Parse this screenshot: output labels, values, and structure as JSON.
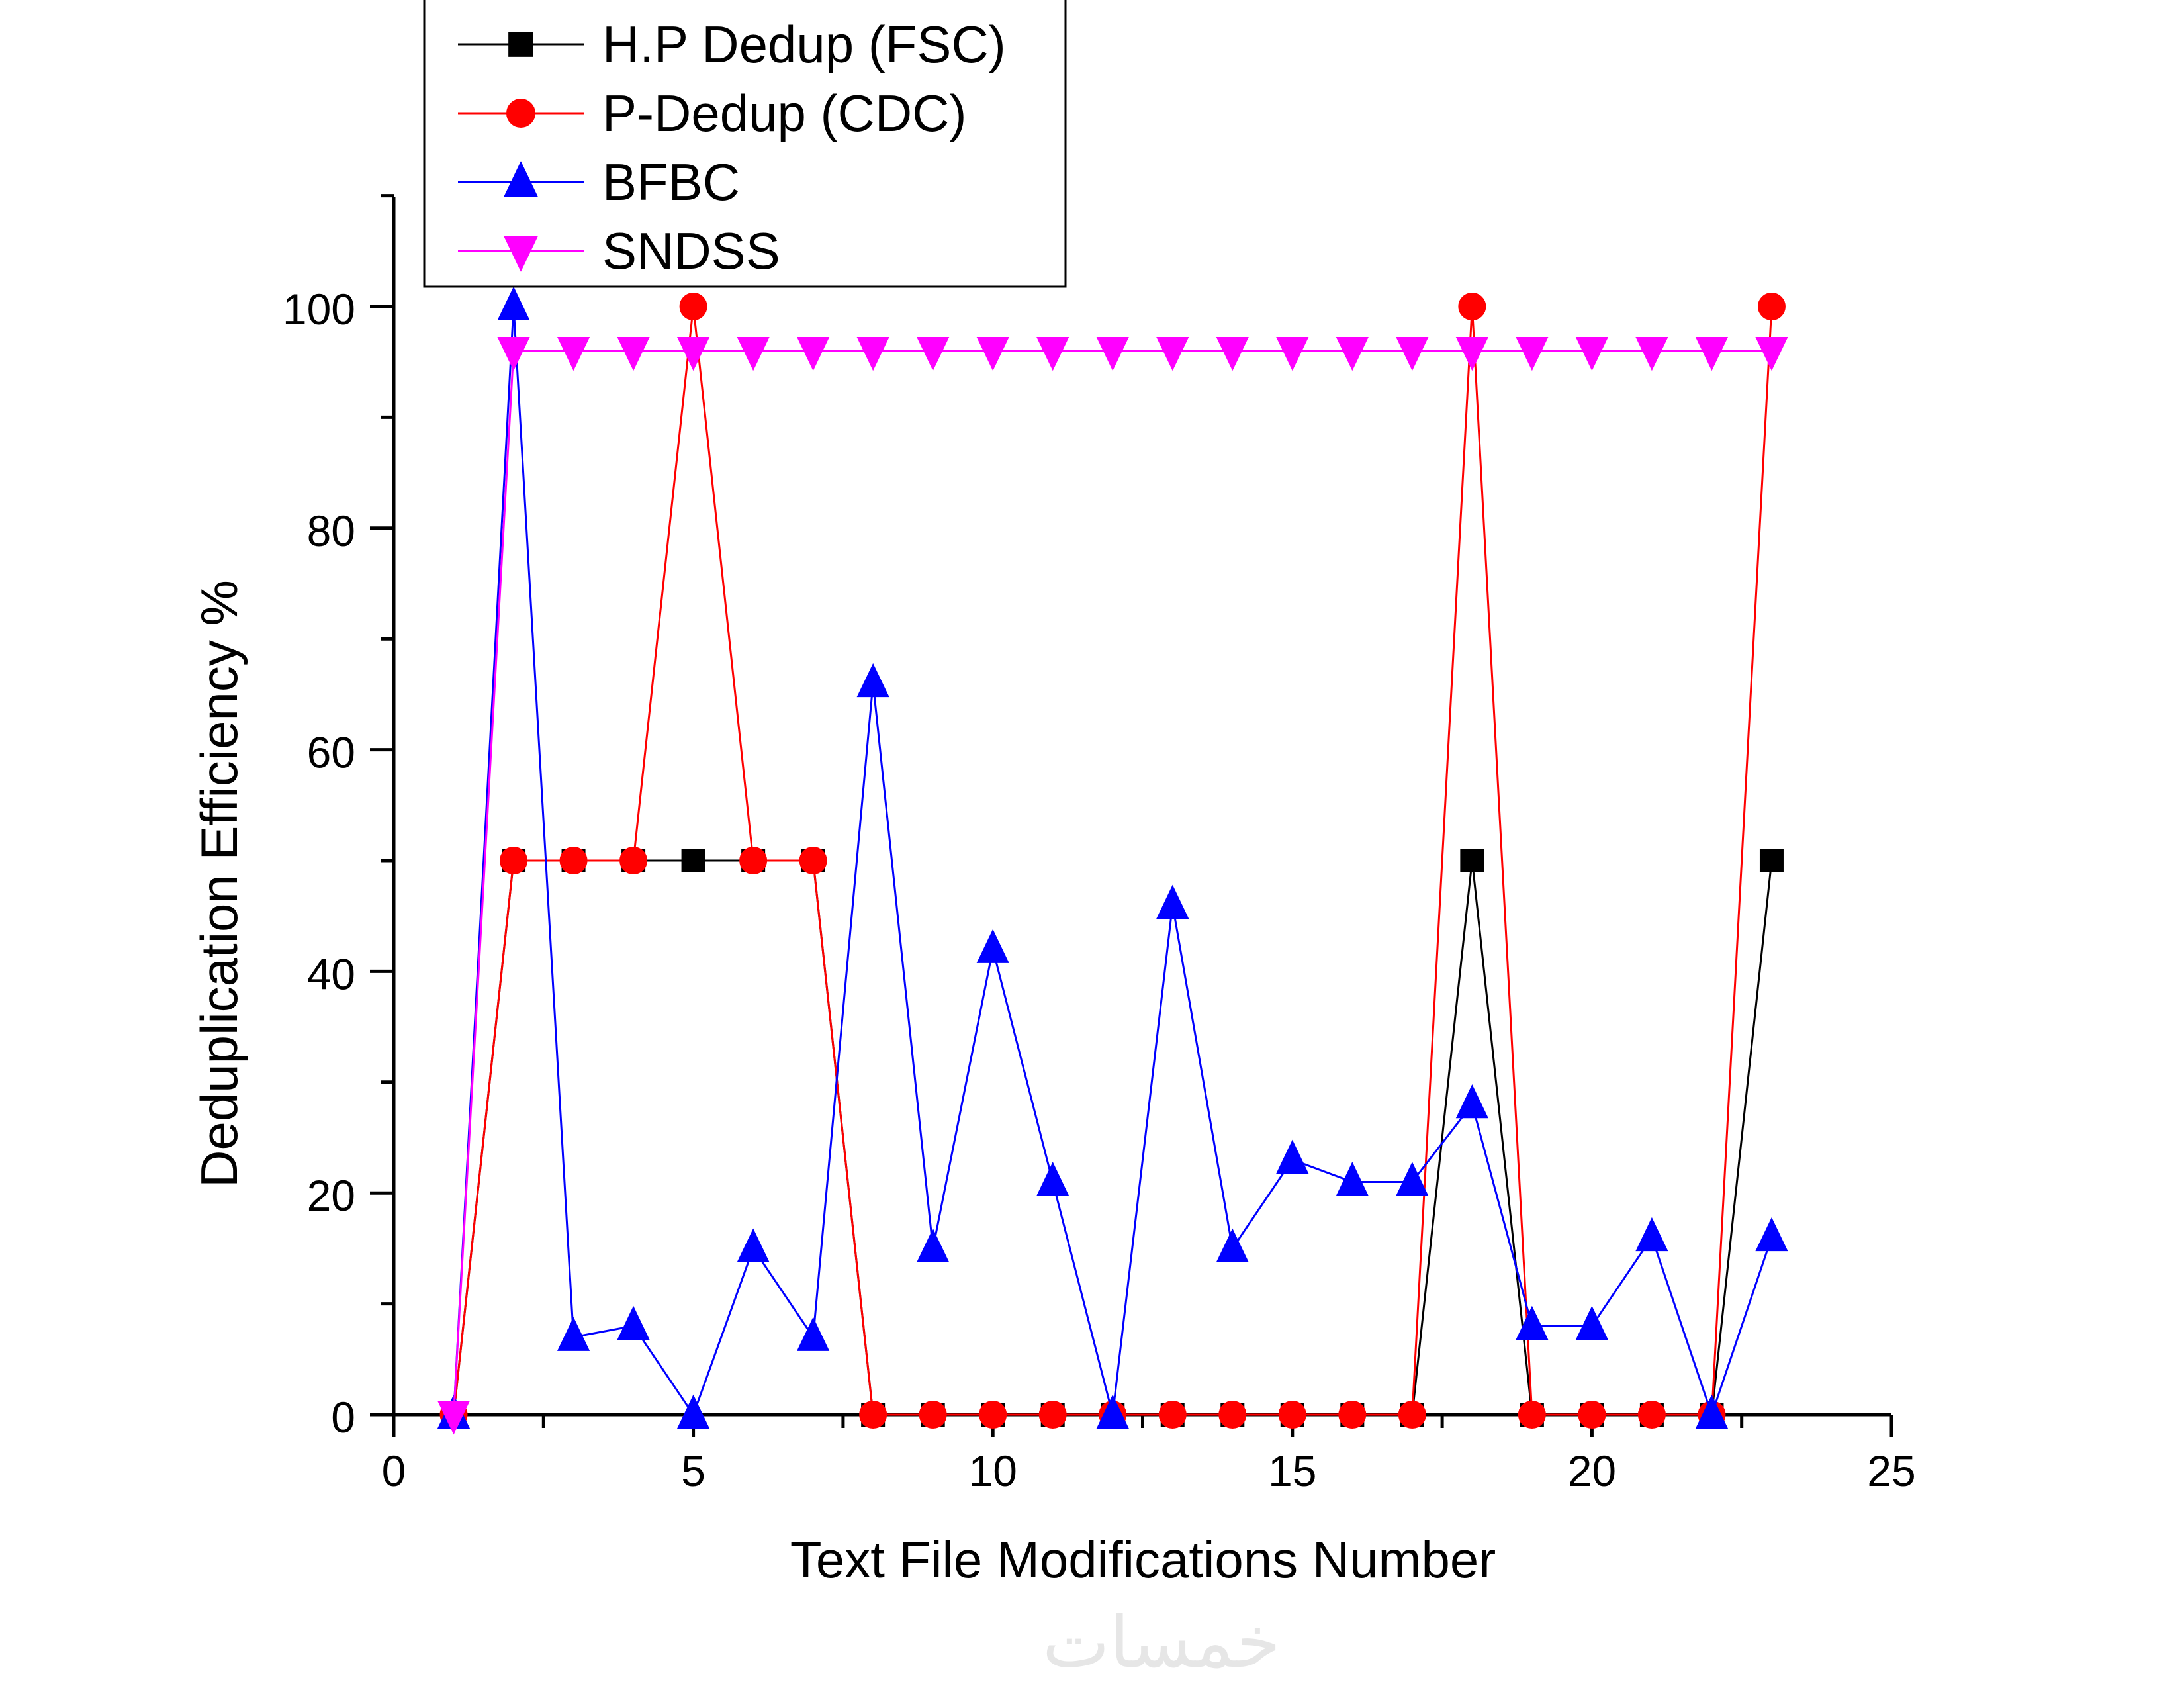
{
  "chart_data": {
    "type": "line",
    "xlabel": "Text File Modifications Number",
    "ylabel": "Deduplication Efficiency %",
    "xlim": [
      0,
      25
    ],
    "ylim": [
      0,
      110
    ],
    "x_ticks": [
      0,
      5,
      10,
      15,
      20,
      25
    ],
    "y_ticks": [
      0,
      20,
      40,
      60,
      80,
      100
    ],
    "grid": false,
    "legend_position": "top-left",
    "x": [
      1,
      2,
      3,
      4,
      5,
      6,
      7,
      8,
      9,
      10,
      11,
      12,
      13,
      14,
      15,
      16,
      17,
      18,
      19,
      20,
      21,
      22,
      23
    ],
    "series": [
      {
        "name": "H.P Dedup (FSC)",
        "color": "#000000",
        "marker": "square",
        "values": [
          0,
          50,
          50,
          50,
          50,
          50,
          50,
          0,
          0,
          0,
          0,
          0,
          0,
          0,
          0,
          0,
          0,
          50,
          0,
          0,
          0,
          0,
          50
        ]
      },
      {
        "name": "P-Dedup (CDC)",
        "color": "#ff0000",
        "marker": "circle",
        "values": [
          0,
          50,
          50,
          50,
          100,
          50,
          50,
          0,
          0,
          0,
          0,
          0,
          0,
          0,
          0,
          0,
          0,
          100,
          0,
          0,
          0,
          0,
          100
        ]
      },
      {
        "name": "BFBC",
        "color": "#0000ff",
        "marker": "triangle-up",
        "values": [
          0,
          100,
          7,
          8,
          0,
          15,
          7,
          66,
          15,
          42,
          21,
          0,
          46,
          15,
          23,
          21,
          21,
          28,
          8,
          8,
          16,
          0,
          16
        ]
      },
      {
        "name": "SNDSS",
        "color": "#ff00ff",
        "marker": "triangle-down",
        "values": [
          0,
          96,
          96,
          96,
          96,
          96,
          96,
          96,
          96,
          96,
          96,
          96,
          96,
          96,
          96,
          96,
          96,
          96,
          96,
          96,
          96,
          96,
          96
        ]
      }
    ]
  },
  "watermark_text": "خمسات"
}
